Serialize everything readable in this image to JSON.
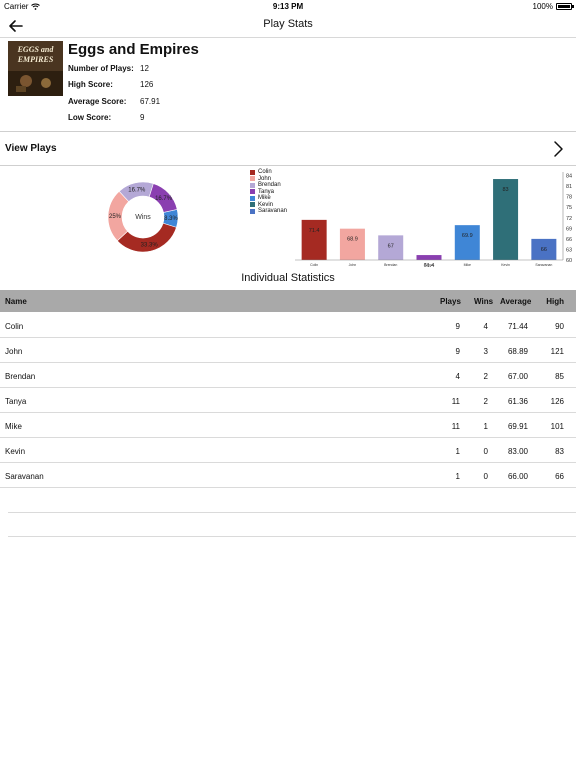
{
  "status_bar": {
    "carrier": "Carrier",
    "time": "9:13 PM",
    "battery": "100%",
    "battery_level": 1.0
  },
  "nav": {
    "title": "Play Stats"
  },
  "game": {
    "title": "Eggs and Empires",
    "cover_text": "EGGS and EMPIRES",
    "stats": [
      {
        "label": "Number of Plays:",
        "value": "12"
      },
      {
        "label": "High Score:",
        "value": "126"
      },
      {
        "label": "Average Score:",
        "value": "67.91"
      },
      {
        "label": "Low Score:",
        "value": "9"
      }
    ]
  },
  "view_plays": {
    "label": "View Plays"
  },
  "wins_chart": {
    "type": "pie",
    "center_label": "Wins",
    "slices": [
      {
        "name": "Colin",
        "value": 33.3,
        "label": "33.3%",
        "color": "#a52a22"
      },
      {
        "name": "John",
        "value": 25.0,
        "label": "25%",
        "color": "#f2a6a0"
      },
      {
        "name": "Brendan",
        "value": 16.7,
        "label": "16.7%",
        "color": "#b4a8d6"
      },
      {
        "name": "Tanya",
        "value": 16.7,
        "label": "16.7%",
        "color": "#8a3fb0"
      },
      {
        "name": "Mike",
        "value": 8.3,
        "label": "8.3%",
        "color": "#3f86d6"
      }
    ]
  },
  "chart_data": {
    "type": "bar",
    "categories": [
      "Colin",
      "John",
      "Brendan",
      "Tanya",
      "Mike",
      "Kevin",
      "Saravanan"
    ],
    "values": [
      71.4,
      68.9,
      67,
      61.4,
      69.9,
      83,
      66
    ],
    "data_labels": [
      "71.4",
      "68.9",
      "67",
      "61.4",
      "69.9",
      "83",
      "66"
    ],
    "colors": [
      "#a52a22",
      "#f2a6a0",
      "#b4a8d6",
      "#8a3fb0",
      "#3f86d6",
      "#2f6f78",
      "#4a72c4"
    ],
    "legend": [
      "Colin",
      "John",
      "Brendan",
      "Tanya",
      "Mike",
      "Kevin",
      "Saravanan"
    ],
    "legend_position": "top-left",
    "y_ticks": [
      "84",
      "81",
      "78",
      "75",
      "72",
      "69",
      "66",
      "63",
      "60"
    ],
    "ylim": [
      60,
      85
    ],
    "y_axis_side": "right",
    "grid": false,
    "title": "",
    "xlabel": "",
    "ylabel": ""
  },
  "section_title": "Individual Statistics",
  "table": {
    "headers": {
      "name": "Name",
      "plays": "Plays",
      "wins": "Wins",
      "average": "Average",
      "high": "High"
    },
    "rows": [
      {
        "name": "Colin",
        "plays": "9",
        "wins": "4",
        "average": "71.44",
        "high": "90"
      },
      {
        "name": "John",
        "plays": "9",
        "wins": "3",
        "average": "68.89",
        "high": "121"
      },
      {
        "name": "Brendan",
        "plays": "4",
        "wins": "2",
        "average": "67.00",
        "high": "85"
      },
      {
        "name": "Tanya",
        "plays": "11",
        "wins": "2",
        "average": "61.36",
        "high": "126"
      },
      {
        "name": "Mike",
        "plays": "11",
        "wins": "1",
        "average": "69.91",
        "high": "101"
      },
      {
        "name": "Kevin",
        "plays": "1",
        "wins": "0",
        "average": "83.00",
        "high": "83"
      },
      {
        "name": "Saravanan",
        "plays": "1",
        "wins": "0",
        "average": "66.00",
        "high": "66"
      }
    ]
  },
  "icons": {
    "back": "arrow-left-icon",
    "chevron": "chevron-right-icon",
    "wifi": "wifi-icon",
    "battery": "battery-icon"
  }
}
